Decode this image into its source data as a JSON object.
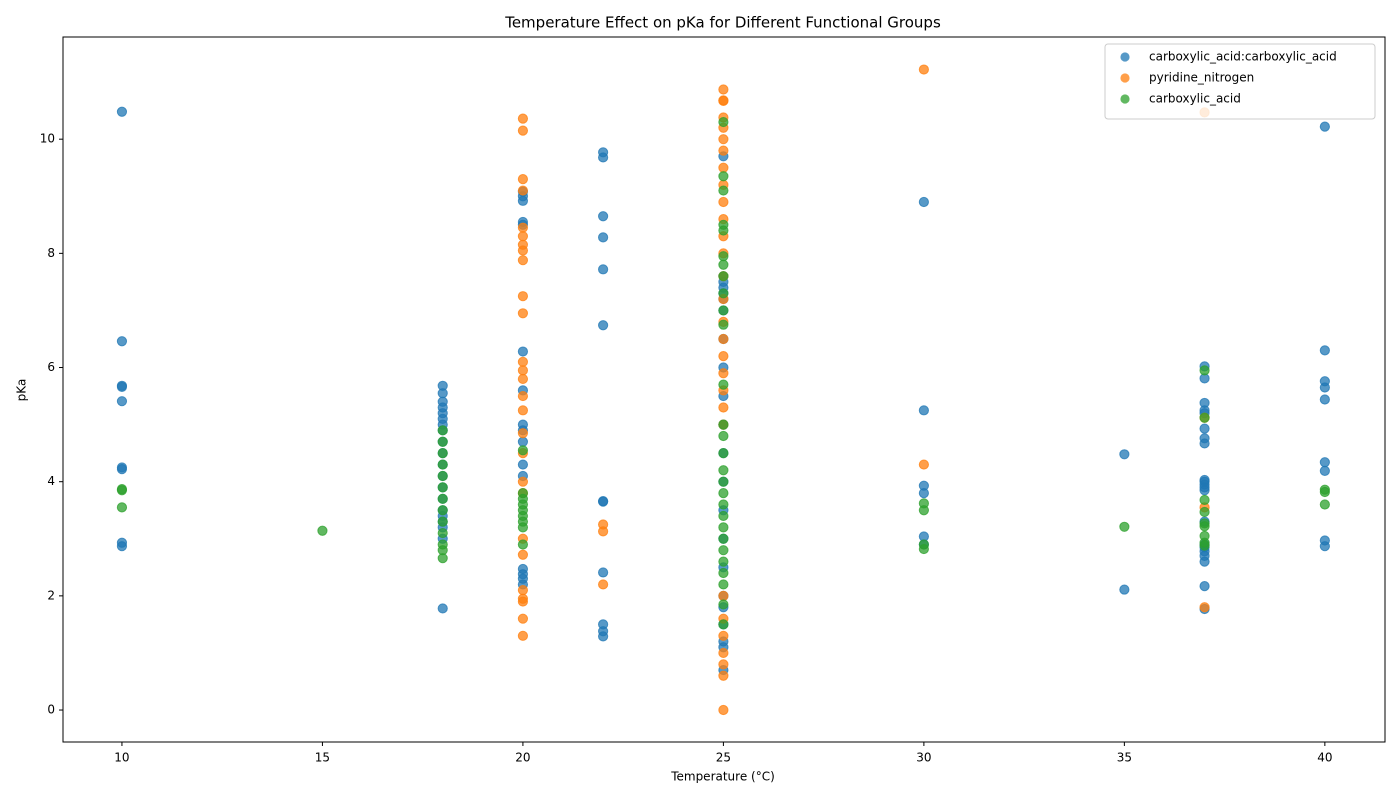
{
  "chart_data": {
    "type": "scatter",
    "title": "Temperature Effect on pKa for Different Functional Groups",
    "x_label": "Temperature (°C)",
    "y_label": "pKa",
    "xlim": [
      8.53,
      41.5
    ],
    "ylim": [
      -0.56,
      11.79
    ],
    "xticks": [
      10,
      15,
      20,
      25,
      30,
      35,
      40
    ],
    "yticks": [
      0,
      2,
      4,
      6,
      8,
      10
    ],
    "legend": "upper right",
    "series": [
      {
        "name": "carboxylic_acid:carboxylic_acid",
        "color": "#1f77b4",
        "x": [
          10,
          10,
          10,
          10,
          10,
          10,
          10,
          10,
          10,
          18,
          18,
          18,
          18,
          18,
          18,
          18,
          18,
          18,
          18,
          18,
          18,
          18,
          18,
          18,
          18,
          18,
          18,
          18,
          18,
          20,
          20,
          20,
          20,
          20,
          20,
          20,
          20,
          20,
          20,
          20,
          20,
          20,
          20,
          20,
          20,
          22,
          22,
          22,
          22,
          22,
          22,
          22,
          22,
          22,
          22,
          22,
          22,
          25,
          25,
          25,
          25,
          25,
          25,
          25,
          25,
          25,
          25,
          25,
          25,
          25,
          25,
          25,
          25,
          25,
          25,
          25,
          25,
          25,
          25,
          30,
          30,
          30,
          30,
          30,
          30,
          35,
          35,
          37,
          37,
          37,
          37,
          37,
          37,
          37,
          37,
          37,
          37,
          37,
          37,
          37,
          37,
          37,
          37,
          37,
          37,
          37,
          37,
          37,
          40,
          40,
          40,
          40,
          40,
          40,
          40,
          40,
          40
        ],
        "values": [
          10.48,
          6.46,
          5.68,
          5.66,
          5.41,
          4.25,
          4.22,
          2.93,
          2.87,
          5.68,
          5.55,
          5.4,
          5.3,
          5.2,
          5.1,
          5.0,
          4.9,
          4.7,
          4.5,
          4.3,
          4.1,
          3.9,
          3.7,
          3.5,
          3.4,
          3.3,
          3.2,
          3.0,
          1.78,
          9.08,
          9.0,
          8.92,
          8.55,
          8.5,
          6.28,
          5.6,
          5.0,
          4.9,
          4.7,
          4.3,
          4.1,
          2.47,
          2.38,
          2.3,
          2.2,
          9.77,
          9.68,
          8.65,
          8.28,
          7.72,
          6.74,
          3.66,
          3.65,
          2.41,
          1.5,
          1.38,
          1.29,
          9.7,
          7.6,
          7.5,
          7.4,
          7.3,
          7.2,
          7.0,
          6.5,
          6.0,
          5.5,
          5.0,
          4.5,
          4.0,
          3.5,
          3.0,
          2.5,
          2.0,
          1.8,
          1.5,
          1.2,
          1.1,
          0.7,
          8.9,
          5.25,
          3.93,
          3.8,
          3.04,
          2.9,
          4.48,
          2.11,
          6.02,
          5.81,
          5.38,
          5.25,
          5.2,
          4.93,
          4.76,
          4.67,
          4.03,
          4.0,
          3.95,
          3.9,
          3.85,
          3.3,
          2.9,
          2.85,
          2.78,
          2.7,
          2.6,
          2.17,
          1.77,
          10.22,
          6.3,
          5.76,
          5.65,
          5.44,
          4.34,
          4.19,
          2.97,
          2.87
        ]
      },
      {
        "name": "pyridine_nitrogen",
        "color": "#ff7f0e",
        "x": [
          20,
          20,
          20,
          20,
          20,
          20,
          20,
          20,
          20,
          20,
          20,
          20,
          20,
          20,
          20,
          20,
          20,
          20,
          20,
          20,
          20,
          20,
          20,
          20,
          20,
          20,
          20,
          22,
          22,
          22,
          25,
          25,
          25,
          25,
          25,
          25,
          25,
          25,
          25,
          25,
          25,
          25,
          25,
          25,
          25,
          25,
          25,
          25,
          25,
          25,
          25,
          25,
          25,
          25,
          25,
          25,
          25,
          25,
          25,
          30,
          30,
          37,
          37,
          37,
          37
        ],
        "values": [
          10.36,
          10.15,
          9.3,
          9.1,
          8.45,
          8.3,
          8.15,
          8.05,
          7.88,
          7.25,
          6.95,
          6.1,
          5.95,
          5.8,
          5.5,
          5.25,
          4.85,
          4.5,
          4.0,
          3.8,
          3.0,
          2.72,
          2.1,
          1.95,
          1.9,
          1.6,
          1.3,
          3.25,
          3.13,
          2.2,
          10.87,
          10.68,
          10.67,
          10.38,
          10.2,
          10.0,
          9.8,
          9.5,
          9.2,
          8.9,
          8.6,
          8.3,
          8.0,
          7.6,
          7.2,
          6.8,
          6.5,
          6.2,
          5.9,
          5.6,
          5.3,
          5.0,
          2.0,
          1.6,
          1.3,
          1.0,
          0.8,
          0.6,
          0.0,
          11.22,
          4.3,
          10.47,
          5.12,
          3.55,
          1.8
        ]
      },
      {
        "name": "carboxylic_acid",
        "color": "#2ca02c",
        "x": [
          10,
          10,
          10,
          15,
          18,
          18,
          18,
          18,
          18,
          18,
          18,
          18,
          18,
          18,
          18,
          18,
          18,
          20,
          20,
          20,
          20,
          20,
          20,
          20,
          20,
          20,
          25,
          25,
          25,
          25,
          25,
          25,
          25,
          25,
          25,
          25,
          25,
          25,
          25,
          25,
          25,
          25,
          25,
          25,
          25,
          25,
          25,
          25,
          25,
          25,
          25,
          25,
          25,
          25,
          30,
          30,
          30,
          30,
          35,
          37,
          37,
          37,
          37,
          37,
          37,
          37,
          37,
          37,
          40,
          40,
          40
        ],
        "values": [
          3.87,
          3.85,
          3.55,
          3.14,
          4.9,
          4.7,
          4.5,
          4.3,
          4.1,
          3.9,
          3.7,
          3.5,
          3.3,
          3.1,
          2.9,
          2.8,
          2.66,
          4.55,
          3.8,
          3.7,
          3.6,
          3.5,
          3.4,
          3.3,
          3.2,
          2.9,
          10.3,
          9.35,
          9.1,
          8.5,
          8.4,
          7.95,
          7.8,
          7.6,
          7.3,
          7.0,
          6.75,
          5.7,
          5.0,
          4.8,
          4.5,
          4.2,
          4.0,
          3.8,
          3.6,
          3.4,
          3.2,
          3.0,
          2.8,
          2.6,
          2.4,
          2.2,
          1.85,
          1.5,
          3.62,
          3.5,
          2.9,
          2.82,
          3.21,
          5.95,
          5.12,
          3.68,
          3.47,
          3.27,
          3.22,
          3.05,
          2.93,
          2.88,
          3.86,
          3.82,
          3.6
        ]
      }
    ]
  }
}
